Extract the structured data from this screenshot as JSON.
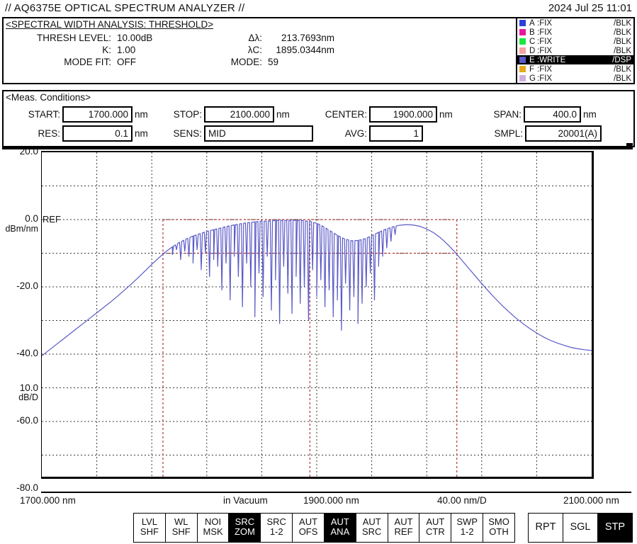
{
  "title_bar": {
    "title": "// AQ6375E OPTICAL SPECTRUM ANALYZER //",
    "datetime": "2024 Jul 25 11:01"
  },
  "analysis": {
    "header": "<SPECTRAL WIDTH ANALYSIS: THRESHOLD>",
    "left_rows": [
      {
        "label": "THRESH LEVEL:",
        "value": "10.00dB"
      },
      {
        "label": "K:",
        "value": "1.00"
      },
      {
        "label": "MODE FIT:",
        "value": "OFF"
      }
    ],
    "right_rows": [
      {
        "label": "Δλ:",
        "value": "213.7693nm",
        "align": "right"
      },
      {
        "label": "λC:",
        "value": "1895.0344nm",
        "align": "right"
      },
      {
        "label": "MODE:",
        "value": "59",
        "align": "left"
      }
    ]
  },
  "trace_legend": {
    "rows": [
      {
        "id": "A",
        "mode": ":FIX",
        "status": "/BLK",
        "color": "#2b3fd8",
        "selected": false
      },
      {
        "id": "B",
        "mode": ":FIX",
        "status": "/BLK",
        "color": "#e8189c",
        "selected": false
      },
      {
        "id": "C",
        "mode": ":FIX",
        "status": "/BLK",
        "color": "#19e83c",
        "selected": false
      },
      {
        "id": "D",
        "mode": ":FIX",
        "status": "/BLK",
        "color": "#f4a3a3",
        "selected": false
      },
      {
        "id": "E",
        "mode": ":WRITE",
        "status": "/DSP",
        "color": "#5a5ac8",
        "selected": true
      },
      {
        "id": "F",
        "mode": ":FIX",
        "status": "/BLK",
        "color": "#e8a819",
        "selected": false
      },
      {
        "id": "G",
        "mode": ":FIX",
        "status": "/BLK",
        "color": "#cfaede",
        "selected": false
      }
    ]
  },
  "meas": {
    "header": "<Meas. Conditions>",
    "fields": [
      {
        "key": "start",
        "label": "START:",
        "value": "1700.000",
        "unit": "nm"
      },
      {
        "key": "stop",
        "label": "STOP:",
        "value": "2100.000",
        "unit": "nm"
      },
      {
        "key": "center",
        "label": "CENTER:",
        "value": "1900.000",
        "unit": "nm"
      },
      {
        "key": "span",
        "label": "SPAN:",
        "value": "400.0",
        "unit": "nm"
      },
      {
        "key": "res",
        "label": "RES:",
        "value": "0.1",
        "unit": "nm"
      },
      {
        "key": "sens",
        "label": "SENS:",
        "value": "MID",
        "unit": "",
        "align": "left"
      },
      {
        "key": "avg",
        "label": "AVG:",
        "value": "1",
        "unit": ""
      },
      {
        "key": "smpl",
        "label": "SMPL:",
        "value": "20001(A)",
        "unit": ""
      }
    ]
  },
  "chart_data": {
    "type": "line",
    "x_axis": {
      "min_nm": 1700,
      "max_nm": 2100,
      "grid_step_nm": 40,
      "unit": "nm",
      "labels": [
        "1700.000 nm",
        "in Vacuum",
        "1900.000 nm",
        "40.00 nm/D",
        "2100.000 nm"
      ]
    },
    "y_axis": {
      "max_db": 20,
      "min_db": -80,
      "grid_step_db": 10,
      "unit_label": "dBm/nm",
      "scale_label": "10.0",
      "scale_unit": "dB/D",
      "ref_label": "REF",
      "ticks": [
        {
          "db": 20,
          "label": "20.0"
        },
        {
          "db": 0,
          "label": "0.0"
        },
        {
          "db": -20,
          "label": "-20.0"
        },
        {
          "db": -40,
          "label": "-40.0"
        },
        {
          "db": -60,
          "label": "-60.0"
        },
        {
          "db": -80,
          "label": "-80.0"
        }
      ]
    },
    "grid_color": "#3a3a3a",
    "markers": {
      "color": "#b23636",
      "vertical_nm": [
        1788.15,
        1895.03,
        2001.92
      ],
      "horizontal_db": [
        0,
        -10
      ]
    },
    "series": [
      {
        "name": "E",
        "color": "#5a5ac8",
        "envelope_nm_db": [
          [
            1700,
            -40.5
          ],
          [
            1705,
            -38.9
          ],
          [
            1710,
            -37.3
          ],
          [
            1715,
            -35.7
          ],
          [
            1720,
            -34.1
          ],
          [
            1725,
            -32.5
          ],
          [
            1730,
            -30.9
          ],
          [
            1735,
            -29.3
          ],
          [
            1740,
            -27.7
          ],
          [
            1745,
            -26.1
          ],
          [
            1750,
            -24.5
          ],
          [
            1755,
            -22.8
          ],
          [
            1760,
            -21.0
          ],
          [
            1765,
            -19.2
          ],
          [
            1770,
            -17.3
          ],
          [
            1775,
            -15.3
          ],
          [
            1780,
            -13.3
          ],
          [
            1785,
            -11.4
          ],
          [
            1790,
            -9.6
          ],
          [
            1795,
            -8.1
          ],
          [
            1800,
            -6.8
          ],
          [
            1805,
            -5.8
          ],
          [
            1810,
            -4.9
          ],
          [
            1815,
            -4.2
          ],
          [
            1820,
            -3.5
          ],
          [
            1825,
            -3.0
          ],
          [
            1830,
            -2.5
          ],
          [
            1835,
            -2.0
          ],
          [
            1840,
            -1.6
          ],
          [
            1845,
            -1.2
          ],
          [
            1850,
            -0.9
          ],
          [
            1855,
            -0.7
          ],
          [
            1860,
            -0.5
          ],
          [
            1865,
            -0.4
          ],
          [
            1870,
            -0.3
          ],
          [
            1875,
            -0.25
          ],
          [
            1880,
            -0.2
          ],
          [
            1885,
            -0.2
          ],
          [
            1890,
            -0.3
          ],
          [
            1895,
            -0.55
          ],
          [
            1900,
            -1.1
          ],
          [
            1905,
            -2.1
          ],
          [
            1910,
            -3.4
          ],
          [
            1915,
            -4.7
          ],
          [
            1920,
            -5.7
          ],
          [
            1925,
            -6.3
          ],
          [
            1930,
            -6.2
          ],
          [
            1935,
            -5.7
          ],
          [
            1940,
            -4.8
          ],
          [
            1945,
            -3.8
          ],
          [
            1950,
            -2.9
          ],
          [
            1955,
            -2.2
          ],
          [
            1960,
            -1.7
          ],
          [
            1965,
            -1.5
          ],
          [
            1970,
            -1.6
          ],
          [
            1975,
            -2.0
          ],
          [
            1980,
            -2.8
          ],
          [
            1985,
            -3.9
          ],
          [
            1990,
            -5.4
          ],
          [
            1995,
            -7.3
          ],
          [
            2000,
            -9.4
          ],
          [
            2005,
            -11.8
          ],
          [
            2010,
            -14.2
          ],
          [
            2015,
            -16.6
          ],
          [
            2020,
            -19.0
          ],
          [
            2025,
            -21.3
          ],
          [
            2030,
            -23.5
          ],
          [
            2035,
            -25.6
          ],
          [
            2040,
            -27.5
          ],
          [
            2045,
            -29.3
          ],
          [
            2050,
            -30.9
          ],
          [
            2055,
            -32.4
          ],
          [
            2060,
            -33.7
          ],
          [
            2065,
            -34.9
          ],
          [
            2070,
            -35.9
          ],
          [
            2075,
            -36.7
          ],
          [
            2080,
            -37.4
          ],
          [
            2085,
            -38.0
          ],
          [
            2090,
            -38.4
          ],
          [
            2095,
            -38.7
          ],
          [
            2100,
            -38.9
          ]
        ],
        "dips_nm_db": [
          [
            1795,
            -10.5
          ],
          [
            1798,
            -9
          ],
          [
            1801,
            -12
          ],
          [
            1804,
            -9.5
          ],
          [
            1807,
            -11
          ],
          [
            1810,
            -13
          ],
          [
            1813,
            -9
          ],
          [
            1816,
            -15
          ],
          [
            1819,
            -10
          ],
          [
            1822,
            -17
          ],
          [
            1825,
            -12
          ],
          [
            1828,
            -14
          ],
          [
            1831,
            -21
          ],
          [
            1834,
            -13
          ],
          [
            1837,
            -24
          ],
          [
            1840,
            -11
          ],
          [
            1843,
            -17
          ],
          [
            1846,
            -26
          ],
          [
            1849,
            -13
          ],
          [
            1852,
            -20
          ],
          [
            1855,
            -29
          ],
          [
            1858,
            -16
          ],
          [
            1861,
            -23
          ],
          [
            1864,
            -11
          ],
          [
            1867,
            -27
          ],
          [
            1870,
            -18
          ],
          [
            1873,
            -31
          ],
          [
            1876,
            -14
          ],
          [
            1879,
            -22
          ],
          [
            1882,
            -28
          ],
          [
            1885,
            -17
          ],
          [
            1888,
            -25
          ],
          [
            1891,
            -20
          ],
          [
            1894,
            -30
          ],
          [
            1897,
            -15
          ],
          [
            1900,
            -23
          ],
          [
            1903,
            -18
          ],
          [
            1906,
            -26
          ],
          [
            1909,
            -21
          ],
          [
            1912,
            -29
          ],
          [
            1915,
            -24
          ],
          [
            1918,
            -33
          ],
          [
            1921,
            -19
          ],
          [
            1924,
            -27
          ],
          [
            1927,
            -23
          ],
          [
            1930,
            -31
          ],
          [
            1933,
            -25
          ],
          [
            1936,
            -20
          ],
          [
            1939,
            -16
          ],
          [
            1942,
            -24
          ],
          [
            1945,
            -14
          ],
          [
            1948,
            -11
          ],
          [
            1951,
            -8.5
          ],
          [
            1954,
            -6.5
          ],
          [
            1957,
            -4.5
          ]
        ]
      }
    ]
  },
  "softkeys": {
    "menu": [
      {
        "line1": "LVL",
        "line2": "SHF",
        "active": false
      },
      {
        "line1": "WL",
        "line2": "SHF",
        "active": false
      },
      {
        "line1": "NOI",
        "line2": "MSK",
        "active": false
      },
      {
        "line1": "SRC",
        "line2": "ZOM",
        "active": true
      },
      {
        "line1": "SRC",
        "line2": "1-2",
        "active": false
      },
      {
        "line1": "AUT",
        "line2": "OFS",
        "active": false
      },
      {
        "line1": "AUT",
        "line2": "ANA",
        "active": true
      },
      {
        "line1": "AUT",
        "line2": "SRC",
        "active": false
      },
      {
        "line1": "AUT",
        "line2": "REF",
        "active": false
      },
      {
        "line1": "AUT",
        "line2": "CTR",
        "active": false
      },
      {
        "line1": "SWP",
        "line2": "1-2",
        "active": false
      },
      {
        "line1": "SMO",
        "line2": "OTH",
        "active": false
      }
    ],
    "sweep": [
      {
        "label": "RPT",
        "active": false
      },
      {
        "label": "SGL",
        "active": false
      },
      {
        "label": "STP",
        "active": true
      }
    ]
  }
}
